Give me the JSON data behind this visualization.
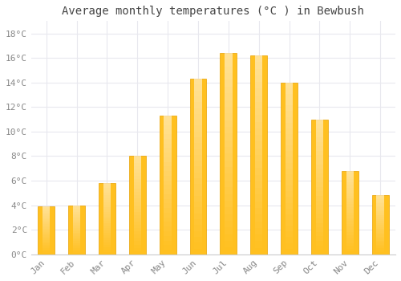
{
  "months": [
    "Jan",
    "Feb",
    "Mar",
    "Apr",
    "May",
    "Jun",
    "Jul",
    "Aug",
    "Sep",
    "Oct",
    "Nov",
    "Dec"
  ],
  "temperatures": [
    3.9,
    4.0,
    5.8,
    8.0,
    11.3,
    14.3,
    16.4,
    16.2,
    14.0,
    11.0,
    6.8,
    4.8
  ],
  "bar_color_main": "#FFC020",
  "bar_color_highlight": "#FFE080",
  "bar_color_edge": "#E8A000",
  "title": "Average monthly temperatures (°C ) in Bewbush",
  "ylim": [
    0,
    19
  ],
  "yticks": [
    0,
    2,
    4,
    6,
    8,
    10,
    12,
    14,
    16,
    18
  ],
  "ytick_labels": [
    "0°C",
    "2°C",
    "4°C",
    "6°C",
    "8°C",
    "10°C",
    "12°C",
    "14°C",
    "16°C",
    "18°C"
  ],
  "background_color": "#ffffff",
  "plot_bg_color": "#ffffff",
  "grid_color": "#e8e8ee",
  "title_fontsize": 10,
  "tick_fontsize": 8,
  "font_family": "monospace",
  "tick_color": "#888888",
  "bar_width": 0.55
}
